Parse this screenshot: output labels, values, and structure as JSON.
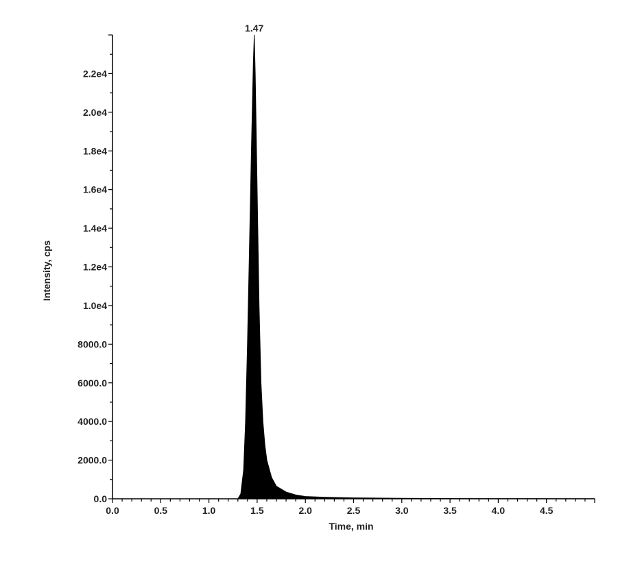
{
  "chart_data": {
    "type": "area",
    "title": "",
    "xlabel": "Time, min",
    "ylabel": "Intensity, cps",
    "xlim": [
      0,
      5
    ],
    "ylim": [
      0,
      24000
    ],
    "x_ticks": [
      "0.0",
      "0.5",
      "1.0",
      "1.5",
      "2.0",
      "2.5",
      "3.0",
      "3.5",
      "4.0",
      "4.5"
    ],
    "y_ticks": [
      "0.0",
      "2000.0",
      "4000.0",
      "6000.0",
      "8000.0",
      "1.0e4",
      "1.2e4",
      "1.4e4",
      "1.6e4",
      "1.8e4",
      "2.0e4",
      "2.2e4"
    ],
    "grid": false,
    "fill_color": "#000000",
    "annotations": [
      {
        "text": "1.47",
        "x": 1.47,
        "y": 24000
      }
    ],
    "series": [
      {
        "x": [
          0.0,
          1.3,
          1.33,
          1.36,
          1.38,
          1.4,
          1.42,
          1.44,
          1.46,
          1.47,
          1.48,
          1.5,
          1.52,
          1.54,
          1.56,
          1.58,
          1.6,
          1.65,
          1.7,
          1.8,
          1.9,
          2.0,
          2.2,
          2.5,
          3.0,
          3.5,
          4.0,
          5.0
        ],
        "y": [
          0,
          0,
          250,
          1500,
          4000,
          8000,
          13000,
          18000,
          22500,
          24000,
          22000,
          16000,
          10000,
          6000,
          4000,
          2800,
          2000,
          1100,
          650,
          350,
          200,
          120,
          80,
          50,
          25,
          15,
          10,
          5
        ]
      }
    ]
  }
}
